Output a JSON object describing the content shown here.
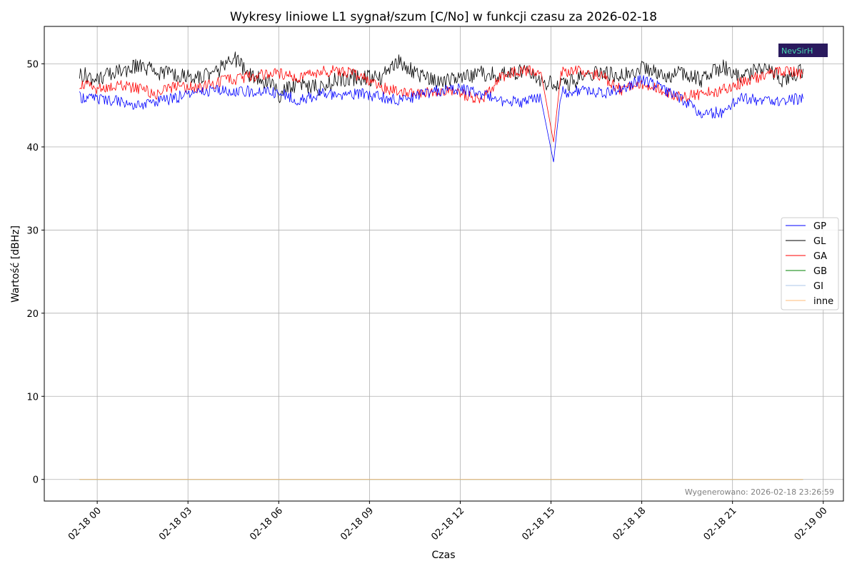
{
  "chart_data": {
    "type": "line",
    "title": "Wykresy liniowe L1 sygnał/szum [C/No] w funkcji czasu za 2026-02-18",
    "xlabel": "Czas",
    "ylabel": "Wartość [dBHz]",
    "xlim": [
      "2026-02-17 22:15",
      "2026-02-19 00:40"
    ],
    "ylim": [
      -2.6,
      54.5
    ],
    "grid": true,
    "legend_position": "center-right",
    "x_ticks": [
      "02-18 00",
      "02-18 03",
      "02-18 06",
      "02-18 09",
      "02-18 12",
      "02-18 15",
      "02-18 18",
      "02-18 21",
      "02-19 00"
    ],
    "y_ticks": [
      0,
      10,
      20,
      30,
      40,
      50
    ],
    "footer": "Wygenerowano: 2026-02-18 23:26:59",
    "logo_text": "NevSirH",
    "series": [
      {
        "name": "GP",
        "color": "#0000ff",
        "x": [
          "2026-02-17 23:25",
          "2026-02-18 00:00",
          "2026-02-18 00:40",
          "2026-02-18 01:20",
          "2026-02-18 02:00",
          "2026-02-18 02:40",
          "2026-02-18 03:20",
          "2026-02-18 04:00",
          "2026-02-18 04:40",
          "2026-02-18 05:20",
          "2026-02-18 06:00",
          "2026-02-18 06:40",
          "2026-02-18 07:20",
          "2026-02-18 08:00",
          "2026-02-18 08:40",
          "2026-02-18 09:20",
          "2026-02-18 10:00",
          "2026-02-18 10:40",
          "2026-02-18 11:20",
          "2026-02-18 12:00",
          "2026-02-18 12:40",
          "2026-02-18 13:20",
          "2026-02-18 14:00",
          "2026-02-18 14:40",
          "2026-02-18 15:05",
          "2026-02-18 15:20",
          "2026-02-18 16:00",
          "2026-02-18 16:40",
          "2026-02-18 17:20",
          "2026-02-18 18:00",
          "2026-02-18 18:40",
          "2026-02-18 19:20",
          "2026-02-18 20:00",
          "2026-02-18 20:40",
          "2026-02-18 21:20",
          "2026-02-18 22:00",
          "2026-02-18 22:40",
          "2026-02-18 23:20"
        ],
        "y": [
          46.0,
          45.8,
          45.6,
          45.0,
          45.4,
          46.0,
          46.6,
          46.8,
          46.6,
          46.8,
          46.5,
          45.6,
          46.4,
          46.2,
          46.4,
          46.0,
          45.6,
          46.2,
          46.8,
          47.0,
          46.4,
          45.6,
          45.4,
          45.8,
          38.2,
          46.6,
          46.8,
          46.4,
          47.0,
          48.2,
          47.0,
          45.8,
          44.0,
          44.2,
          46.0,
          45.4,
          45.6,
          45.8
        ]
      },
      {
        "name": "GL",
        "color": "#000000",
        "x": [
          "2026-02-17 23:25",
          "2026-02-18 00:00",
          "2026-02-18 00:40",
          "2026-02-18 01:20",
          "2026-02-18 02:00",
          "2026-02-18 02:40",
          "2026-02-18 03:20",
          "2026-02-18 04:00",
          "2026-02-18 04:30",
          "2026-02-18 05:00",
          "2026-02-18 05:40",
          "2026-02-18 06:00",
          "2026-02-18 06:40",
          "2026-02-18 07:20",
          "2026-02-18 08:00",
          "2026-02-18 08:40",
          "2026-02-18 09:20",
          "2026-02-18 10:00",
          "2026-02-18 10:40",
          "2026-02-18 11:20",
          "2026-02-18 12:00",
          "2026-02-18 12:40",
          "2026-02-18 13:20",
          "2026-02-18 14:00",
          "2026-02-18 14:40",
          "2026-02-18 15:20",
          "2026-02-18 16:00",
          "2026-02-18 16:40",
          "2026-02-18 17:20",
          "2026-02-18 18:00",
          "2026-02-18 18:40",
          "2026-02-18 19:20",
          "2026-02-18 20:00",
          "2026-02-18 20:40",
          "2026-02-18 21:20",
          "2026-02-18 22:00",
          "2026-02-18 22:40",
          "2026-02-18 23:20"
        ],
        "y": [
          48.8,
          48.2,
          49.0,
          49.8,
          49.0,
          48.6,
          48.4,
          49.2,
          50.8,
          48.6,
          47.8,
          46.2,
          47.8,
          47.0,
          48.2,
          48.4,
          48.2,
          50.2,
          48.6,
          47.6,
          48.4,
          48.8,
          48.6,
          49.2,
          48.0,
          47.4,
          48.2,
          49.0,
          48.4,
          49.6,
          48.6,
          48.8,
          48.0,
          49.8,
          48.6,
          49.6,
          48.0,
          49.4
        ]
      },
      {
        "name": "GA",
        "color": "#ff0000",
        "x": [
          "2026-02-17 23:25",
          "2026-02-18 00:00",
          "2026-02-18 00:40",
          "2026-02-18 01:20",
          "2026-02-18 02:00",
          "2026-02-18 02:40",
          "2026-02-18 03:20",
          "2026-02-18 04:00",
          "2026-02-18 04:40",
          "2026-02-18 05:20",
          "2026-02-18 06:00",
          "2026-02-18 06:40",
          "2026-02-18 07:20",
          "2026-02-18 08:00",
          "2026-02-18 08:40",
          "2026-02-18 09:20",
          "2026-02-18 10:00",
          "2026-02-18 10:40",
          "2026-02-18 11:20",
          "2026-02-18 12:00",
          "2026-02-18 12:40",
          "2026-02-18 13:20",
          "2026-02-18 14:00",
          "2026-02-18 14:40",
          "2026-02-18 15:05",
          "2026-02-18 15:20",
          "2026-02-18 16:00",
          "2026-02-18 16:40",
          "2026-02-18 17:20",
          "2026-02-18 18:00",
          "2026-02-18 18:40",
          "2026-02-18 19:20",
          "2026-02-18 20:00",
          "2026-02-18 20:40",
          "2026-02-18 21:20",
          "2026-02-18 22:00",
          "2026-02-18 22:40",
          "2026-02-18 23:20"
        ],
        "y": [
          47.6,
          47.0,
          47.4,
          47.0,
          46.4,
          47.4,
          47.0,
          47.8,
          48.2,
          48.6,
          48.8,
          48.2,
          49.0,
          49.2,
          48.6,
          47.2,
          46.6,
          46.4,
          46.8,
          46.4,
          45.6,
          48.4,
          49.2,
          49.0,
          40.6,
          49.0,
          49.2,
          48.6,
          46.8,
          47.4,
          46.8,
          46.0,
          46.4,
          46.8,
          47.8,
          48.6,
          49.2,
          48.8
        ]
      },
      {
        "name": "GB",
        "color": "#008000",
        "x": [
          "2026-02-17 23:25",
          "2026-02-18 23:20"
        ],
        "y": [
          0.0,
          0.0
        ]
      },
      {
        "name": "GI",
        "color": "#aec7e8",
        "x": [
          "2026-02-17 23:25",
          "2026-02-18 23:20"
        ],
        "y": [
          0.0,
          0.0
        ]
      },
      {
        "name": "inne",
        "color": "#ffbb78",
        "x": [
          "2026-02-17 23:25",
          "2026-02-18 23:20"
        ],
        "y": [
          0.0,
          0.0
        ]
      }
    ]
  }
}
